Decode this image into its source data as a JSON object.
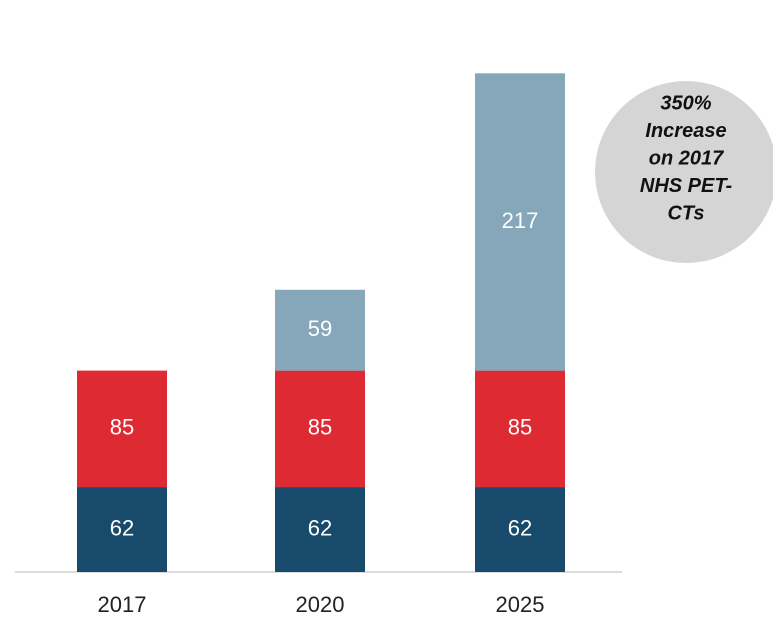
{
  "chart_data": {
    "type": "stacked_bar",
    "categories": [
      "2017",
      "2020",
      "2025"
    ],
    "series": [
      {
        "color": "#174a6b",
        "values": [
          62,
          62,
          62
        ]
      },
      {
        "color": "#dd2a33",
        "values": [
          85,
          85,
          85
        ]
      },
      {
        "color": "#85a7b9",
        "values": [
          null,
          59,
          217
        ]
      }
    ],
    "ylim": [
      0,
      400
    ],
    "annotation": [
      "350%",
      "Increase",
      "on 2017",
      "NHS PET-",
      "CTs"
    ]
  }
}
